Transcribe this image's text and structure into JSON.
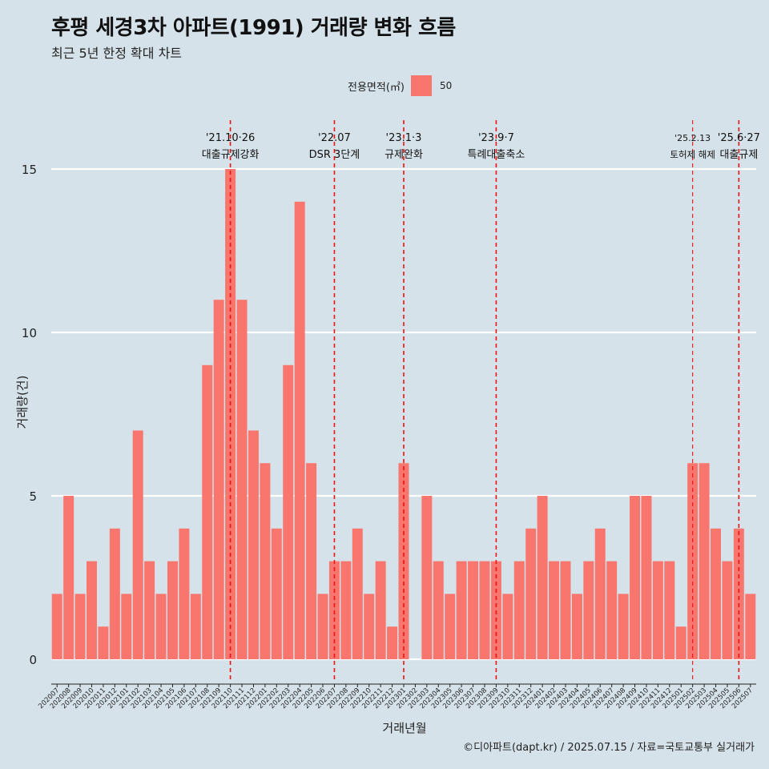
{
  "title": "후평 세경3차 아파트(1991) 거래량 변화 흐름",
  "subtitle": "최근 5년 한정 확대 차트",
  "legend": {
    "title": "전용면적(㎡)",
    "label": "50",
    "color": "#f8766d"
  },
  "caption": "©디아파트(dapt.kr) / 2025.07.15 / 자료=국토교통부 실거래가",
  "chart_data": {
    "type": "bar",
    "xlabel": "거래년월",
    "ylabel": "거래량(건)",
    "ylim": [
      0,
      15
    ],
    "yticks": [
      0,
      5,
      10,
      15
    ],
    "grid": true,
    "legend_position": "top",
    "bar_color": "#f8766d",
    "categories": [
      "202007",
      "202008",
      "202009",
      "202010",
      "202011",
      "202012",
      "202101",
      "202102",
      "202103",
      "202104",
      "202105",
      "202106",
      "202107",
      "202108",
      "202109",
      "202110",
      "202111",
      "202112",
      "202201",
      "202202",
      "202203",
      "202204",
      "202205",
      "202206",
      "202207",
      "202208",
      "202209",
      "202210",
      "202211",
      "202212",
      "202301",
      "202302",
      "202303",
      "202304",
      "202305",
      "202306",
      "202307",
      "202308",
      "202309",
      "202310",
      "202311",
      "202312",
      "202401",
      "202402",
      "202403",
      "202404",
      "202405",
      "202406",
      "202407",
      "202408",
      "202409",
      "202410",
      "202411",
      "202412",
      "202501",
      "202502",
      "202503",
      "202504",
      "202505",
      "202506",
      "202507"
    ],
    "series": [
      {
        "values": [
          2,
          5,
          2,
          3,
          1,
          4,
          2,
          7,
          3,
          2,
          3,
          4,
          2,
          9,
          11,
          15,
          11,
          7,
          6,
          4,
          9,
          14,
          6,
          2,
          3,
          3,
          4,
          2,
          3,
          1,
          6,
          0,
          5,
          3,
          2,
          3,
          3,
          3,
          3,
          2,
          3,
          4,
          5,
          3,
          3,
          2,
          3,
          4,
          3,
          2,
          5,
          5,
          3,
          3,
          1,
          6,
          6,
          4,
          3,
          4,
          2
        ]
      }
    ],
    "annotations": [
      {
        "category": "202110",
        "date": "'21.10·26",
        "label": "대출규제강화",
        "size": "normal"
      },
      {
        "category": "202207",
        "date": "'22.07",
        "label": "DSR 3단계",
        "size": "normal"
      },
      {
        "category": "202301",
        "date": "'23.1·3",
        "label": "규제완화",
        "size": "normal"
      },
      {
        "category": "202309",
        "date": "'23.9·7",
        "label": "특례대출축소",
        "size": "normal"
      },
      {
        "category": "202502",
        "date": "'25.2.13",
        "label": "토허제 해제",
        "size": "small"
      },
      {
        "category": "202506",
        "date": "'25.6·27",
        "label": "대출규제",
        "size": "normal"
      }
    ]
  }
}
